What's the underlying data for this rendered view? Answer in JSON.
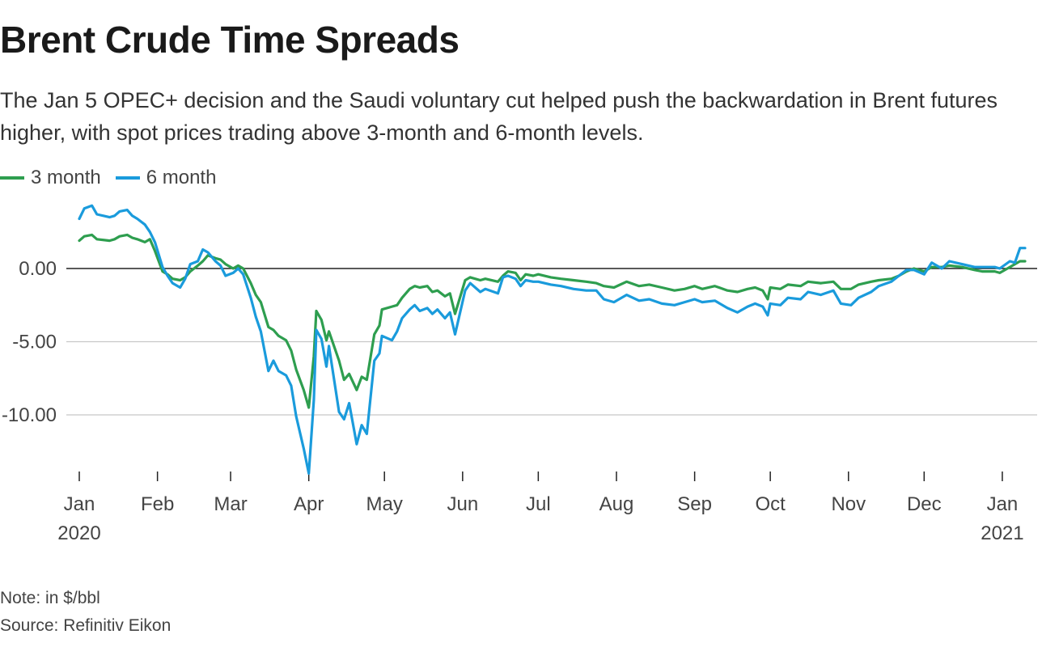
{
  "title": "Brent Crude Time Spreads",
  "subtitle": "The Jan 5 OPEC+ decision and the Saudi voluntary cut helped push the backwardation in Brent futures higher, with spot prices trading above 3-month and 6-month levels.",
  "note": "Note: in $/bbl",
  "source": "Source: Refinitiv Eikon",
  "chart_data": {
    "type": "line",
    "ylim": [
      -14,
      4
    ],
    "xlim": [
      "2020-01-01",
      "2021-01-10"
    ],
    "y_ticks": [
      0,
      -5,
      -10
    ],
    "y_tick_labels": [
      "0.00",
      "-5.00",
      "-10.00"
    ],
    "x_ticks": [
      {
        "date": "2020-01-01",
        "label": "Jan",
        "sublabel": "2020"
      },
      {
        "date": "2020-02-01",
        "label": "Feb"
      },
      {
        "date": "2020-03-01",
        "label": "Mar"
      },
      {
        "date": "2020-04-01",
        "label": "Apr"
      },
      {
        "date": "2020-05-01",
        "label": "May"
      },
      {
        "date": "2020-06-01",
        "label": "Jun"
      },
      {
        "date": "2020-07-01",
        "label": "Jul"
      },
      {
        "date": "2020-08-01",
        "label": "Aug"
      },
      {
        "date": "2020-09-01",
        "label": "Sep"
      },
      {
        "date": "2020-10-01",
        "label": "Oct"
      },
      {
        "date": "2020-11-01",
        "label": "Nov"
      },
      {
        "date": "2020-12-01",
        "label": "Dec"
      },
      {
        "date": "2021-01-01",
        "label": "Jan",
        "sublabel": "2021"
      }
    ],
    "legend_position": "top-left",
    "grid": true,
    "series": [
      {
        "name": "3 month",
        "color": "#2e9e4f",
        "points": [
          [
            "2020-01-01",
            1.9
          ],
          [
            "2020-01-03",
            2.2
          ],
          [
            "2020-01-06",
            2.3
          ],
          [
            "2020-01-08",
            2.0
          ],
          [
            "2020-01-13",
            1.9
          ],
          [
            "2020-01-15",
            2.0
          ],
          [
            "2020-01-17",
            2.2
          ],
          [
            "2020-01-20",
            2.3
          ],
          [
            "2020-01-22",
            2.1
          ],
          [
            "2020-01-24",
            2.0
          ],
          [
            "2020-01-27",
            1.8
          ],
          [
            "2020-01-29",
            2.0
          ],
          [
            "2020-01-31",
            1.2
          ],
          [
            "2020-02-03",
            -0.2
          ],
          [
            "2020-02-05",
            -0.4
          ],
          [
            "2020-02-07",
            -0.7
          ],
          [
            "2020-02-10",
            -0.8
          ],
          [
            "2020-02-12",
            -0.6
          ],
          [
            "2020-02-14",
            -0.2
          ],
          [
            "2020-02-17",
            0.2
          ],
          [
            "2020-02-19",
            0.5
          ],
          [
            "2020-02-21",
            0.9
          ],
          [
            "2020-02-24",
            0.7
          ],
          [
            "2020-02-26",
            0.6
          ],
          [
            "2020-02-28",
            0.3
          ],
          [
            "2020-03-02",
            0.0
          ],
          [
            "2020-03-04",
            0.2
          ],
          [
            "2020-03-06",
            0.0
          ],
          [
            "2020-03-09",
            -1.0
          ],
          [
            "2020-03-11",
            -1.8
          ],
          [
            "2020-03-13",
            -2.3
          ],
          [
            "2020-03-16",
            -4.0
          ],
          [
            "2020-03-18",
            -4.2
          ],
          [
            "2020-03-20",
            -4.6
          ],
          [
            "2020-03-23",
            -4.9
          ],
          [
            "2020-03-25",
            -5.6
          ],
          [
            "2020-03-27",
            -6.9
          ],
          [
            "2020-03-30",
            -8.3
          ],
          [
            "2020-04-01",
            -9.5
          ],
          [
            "2020-04-03",
            -6.0
          ],
          [
            "2020-04-04",
            -2.9
          ],
          [
            "2020-04-06",
            -3.5
          ],
          [
            "2020-04-08",
            -4.9
          ],
          [
            "2020-04-09",
            -4.3
          ],
          [
            "2020-04-13",
            -6.3
          ],
          [
            "2020-04-15",
            -7.6
          ],
          [
            "2020-04-17",
            -7.2
          ],
          [
            "2020-04-20",
            -8.3
          ],
          [
            "2020-04-22",
            -7.4
          ],
          [
            "2020-04-24",
            -7.6
          ],
          [
            "2020-04-27",
            -4.5
          ],
          [
            "2020-04-29",
            -3.9
          ],
          [
            "2020-04-30",
            -2.8
          ],
          [
            "2020-05-04",
            -2.6
          ],
          [
            "2020-05-06",
            -2.5
          ],
          [
            "2020-05-08",
            -2.0
          ],
          [
            "2020-05-11",
            -1.4
          ],
          [
            "2020-05-13",
            -1.2
          ],
          [
            "2020-05-15",
            -1.3
          ],
          [
            "2020-05-18",
            -1.2
          ],
          [
            "2020-05-20",
            -1.6
          ],
          [
            "2020-05-22",
            -1.5
          ],
          [
            "2020-05-25",
            -1.9
          ],
          [
            "2020-05-27",
            -1.7
          ],
          [
            "2020-05-29",
            -3.1
          ],
          [
            "2020-06-02",
            -0.8
          ],
          [
            "2020-06-04",
            -0.6
          ],
          [
            "2020-06-08",
            -0.8
          ],
          [
            "2020-06-10",
            -0.7
          ],
          [
            "2020-06-15",
            -0.9
          ],
          [
            "2020-06-17",
            -0.5
          ],
          [
            "2020-06-19",
            -0.2
          ],
          [
            "2020-06-22",
            -0.3
          ],
          [
            "2020-06-24",
            -0.8
          ],
          [
            "2020-06-26",
            -0.4
          ],
          [
            "2020-06-29",
            -0.5
          ],
          [
            "2020-07-01",
            -0.4
          ],
          [
            "2020-07-06",
            -0.6
          ],
          [
            "2020-07-10",
            -0.7
          ],
          [
            "2020-07-15",
            -0.8
          ],
          [
            "2020-07-20",
            -0.9
          ],
          [
            "2020-07-24",
            -1.0
          ],
          [
            "2020-07-27",
            -1.2
          ],
          [
            "2020-07-31",
            -1.3
          ],
          [
            "2020-08-05",
            -0.9
          ],
          [
            "2020-08-10",
            -1.2
          ],
          [
            "2020-08-14",
            -1.1
          ],
          [
            "2020-08-19",
            -1.3
          ],
          [
            "2020-08-24",
            -1.5
          ],
          [
            "2020-08-28",
            -1.4
          ],
          [
            "2020-09-01",
            -1.2
          ],
          [
            "2020-09-04",
            -1.4
          ],
          [
            "2020-09-09",
            -1.2
          ],
          [
            "2020-09-14",
            -1.5
          ],
          [
            "2020-09-18",
            -1.6
          ],
          [
            "2020-09-22",
            -1.4
          ],
          [
            "2020-09-25",
            -1.3
          ],
          [
            "2020-09-28",
            -1.5
          ],
          [
            "2020-09-30",
            -2.1
          ],
          [
            "2020-10-01",
            -1.3
          ],
          [
            "2020-10-05",
            -1.4
          ],
          [
            "2020-10-08",
            -1.1
          ],
          [
            "2020-10-13",
            -1.2
          ],
          [
            "2020-10-16",
            -0.9
          ],
          [
            "2020-10-21",
            -1.0
          ],
          [
            "2020-10-26",
            -0.9
          ],
          [
            "2020-10-29",
            -1.4
          ],
          [
            "2020-11-02",
            -1.4
          ],
          [
            "2020-11-05",
            -1.1
          ],
          [
            "2020-11-10",
            -0.9
          ],
          [
            "2020-11-13",
            -0.8
          ],
          [
            "2020-11-18",
            -0.7
          ],
          [
            "2020-11-21",
            -0.5
          ],
          [
            "2020-11-24",
            -0.2
          ],
          [
            "2020-11-27",
            0.0
          ],
          [
            "2020-12-01",
            -0.2
          ],
          [
            "2020-12-04",
            0.1
          ],
          [
            "2020-12-08",
            0.1
          ],
          [
            "2020-12-11",
            0.2
          ],
          [
            "2020-12-16",
            0.1
          ],
          [
            "2020-12-21",
            -0.1
          ],
          [
            "2020-12-24",
            -0.2
          ],
          [
            "2020-12-29",
            -0.2
          ],
          [
            "2020-12-31",
            -0.3
          ],
          [
            "2021-01-04",
            0.1
          ],
          [
            "2021-01-06",
            0.3
          ],
          [
            "2021-01-08",
            0.5
          ],
          [
            "2021-01-10",
            0.5
          ]
        ]
      },
      {
        "name": "6 month",
        "color": "#1a9bdc",
        "points": [
          [
            "2020-01-01",
            3.4
          ],
          [
            "2020-01-03",
            4.1
          ],
          [
            "2020-01-06",
            4.3
          ],
          [
            "2020-01-08",
            3.7
          ],
          [
            "2020-01-13",
            3.5
          ],
          [
            "2020-01-15",
            3.6
          ],
          [
            "2020-01-17",
            3.9
          ],
          [
            "2020-01-20",
            4.0
          ],
          [
            "2020-01-22",
            3.6
          ],
          [
            "2020-01-24",
            3.4
          ],
          [
            "2020-01-27",
            3.0
          ],
          [
            "2020-01-29",
            2.5
          ],
          [
            "2020-01-31",
            1.8
          ],
          [
            "2020-02-03",
            0.1
          ],
          [
            "2020-02-05",
            -0.5
          ],
          [
            "2020-02-07",
            -1.0
          ],
          [
            "2020-02-10",
            -1.3
          ],
          [
            "2020-02-12",
            -0.7
          ],
          [
            "2020-02-14",
            0.3
          ],
          [
            "2020-02-17",
            0.5
          ],
          [
            "2020-02-19",
            1.3
          ],
          [
            "2020-02-21",
            1.1
          ],
          [
            "2020-02-24",
            0.5
          ],
          [
            "2020-02-26",
            0.2
          ],
          [
            "2020-02-28",
            -0.5
          ],
          [
            "2020-03-02",
            -0.3
          ],
          [
            "2020-03-04",
            0.0
          ],
          [
            "2020-03-06",
            -0.4
          ],
          [
            "2020-03-09",
            -2.0
          ],
          [
            "2020-03-11",
            -3.3
          ],
          [
            "2020-03-13",
            -4.3
          ],
          [
            "2020-03-16",
            -7.0
          ],
          [
            "2020-03-18",
            -6.3
          ],
          [
            "2020-03-20",
            -7.0
          ],
          [
            "2020-03-23",
            -7.3
          ],
          [
            "2020-03-25",
            -8.0
          ],
          [
            "2020-03-27",
            -10.1
          ],
          [
            "2020-03-30",
            -12.3
          ],
          [
            "2020-04-01",
            -14.0
          ],
          [
            "2020-04-03",
            -9.0
          ],
          [
            "2020-04-04",
            -4.2
          ],
          [
            "2020-04-06",
            -4.8
          ],
          [
            "2020-04-08",
            -6.7
          ],
          [
            "2020-04-09",
            -5.3
          ],
          [
            "2020-04-13",
            -9.8
          ],
          [
            "2020-04-15",
            -10.3
          ],
          [
            "2020-04-17",
            -9.2
          ],
          [
            "2020-04-20",
            -12.0
          ],
          [
            "2020-04-22",
            -10.7
          ],
          [
            "2020-04-24",
            -11.3
          ],
          [
            "2020-04-27",
            -6.3
          ],
          [
            "2020-04-29",
            -5.8
          ],
          [
            "2020-04-30",
            -4.6
          ],
          [
            "2020-05-04",
            -4.9
          ],
          [
            "2020-05-06",
            -4.3
          ],
          [
            "2020-05-08",
            -3.4
          ],
          [
            "2020-05-11",
            -2.8
          ],
          [
            "2020-05-13",
            -2.5
          ],
          [
            "2020-05-15",
            -2.9
          ],
          [
            "2020-05-18",
            -2.7
          ],
          [
            "2020-05-20",
            -3.1
          ],
          [
            "2020-05-22",
            -2.8
          ],
          [
            "2020-05-25",
            -3.4
          ],
          [
            "2020-05-27",
            -3.0
          ],
          [
            "2020-05-29",
            -4.5
          ],
          [
            "2020-06-02",
            -1.5
          ],
          [
            "2020-06-04",
            -1.0
          ],
          [
            "2020-06-08",
            -1.6
          ],
          [
            "2020-06-10",
            -1.4
          ],
          [
            "2020-06-15",
            -1.7
          ],
          [
            "2020-06-17",
            -0.6
          ],
          [
            "2020-06-19",
            -0.5
          ],
          [
            "2020-06-22",
            -0.7
          ],
          [
            "2020-06-24",
            -1.2
          ],
          [
            "2020-06-26",
            -0.8
          ],
          [
            "2020-06-29",
            -0.9
          ],
          [
            "2020-07-01",
            -0.9
          ],
          [
            "2020-07-06",
            -1.1
          ],
          [
            "2020-07-10",
            -1.2
          ],
          [
            "2020-07-15",
            -1.4
          ],
          [
            "2020-07-20",
            -1.5
          ],
          [
            "2020-07-24",
            -1.5
          ],
          [
            "2020-07-27",
            -2.1
          ],
          [
            "2020-07-31",
            -2.3
          ],
          [
            "2020-08-05",
            -1.8
          ],
          [
            "2020-08-10",
            -2.2
          ],
          [
            "2020-08-14",
            -2.1
          ],
          [
            "2020-08-19",
            -2.4
          ],
          [
            "2020-08-24",
            -2.5
          ],
          [
            "2020-08-28",
            -2.3
          ],
          [
            "2020-09-01",
            -2.1
          ],
          [
            "2020-09-04",
            -2.3
          ],
          [
            "2020-09-09",
            -2.2
          ],
          [
            "2020-09-14",
            -2.7
          ],
          [
            "2020-09-18",
            -3.0
          ],
          [
            "2020-09-22",
            -2.6
          ],
          [
            "2020-09-25",
            -2.4
          ],
          [
            "2020-09-28",
            -2.6
          ],
          [
            "2020-09-30",
            -3.2
          ],
          [
            "2020-10-01",
            -2.4
          ],
          [
            "2020-10-05",
            -2.5
          ],
          [
            "2020-10-08",
            -2.0
          ],
          [
            "2020-10-13",
            -2.1
          ],
          [
            "2020-10-16",
            -1.6
          ],
          [
            "2020-10-21",
            -1.8
          ],
          [
            "2020-10-26",
            -1.5
          ],
          [
            "2020-10-29",
            -2.4
          ],
          [
            "2020-11-02",
            -2.5
          ],
          [
            "2020-11-05",
            -2.0
          ],
          [
            "2020-11-10",
            -1.6
          ],
          [
            "2020-11-13",
            -1.2
          ],
          [
            "2020-11-18",
            -0.9
          ],
          [
            "2020-11-21",
            -0.5
          ],
          [
            "2020-11-24",
            -0.1
          ],
          [
            "2020-11-27",
            -0.1
          ],
          [
            "2020-12-01",
            -0.4
          ],
          [
            "2020-12-04",
            0.4
          ],
          [
            "2020-12-08",
            0.0
          ],
          [
            "2020-12-11",
            0.5
          ],
          [
            "2020-12-16",
            0.3
          ],
          [
            "2020-12-21",
            0.1
          ],
          [
            "2020-12-24",
            0.1
          ],
          [
            "2020-12-29",
            0.1
          ],
          [
            "2020-12-31",
            0.0
          ],
          [
            "2021-01-04",
            0.5
          ],
          [
            "2021-01-06",
            0.4
          ],
          [
            "2021-01-08",
            1.4
          ],
          [
            "2021-01-10",
            1.4
          ]
        ]
      }
    ]
  }
}
